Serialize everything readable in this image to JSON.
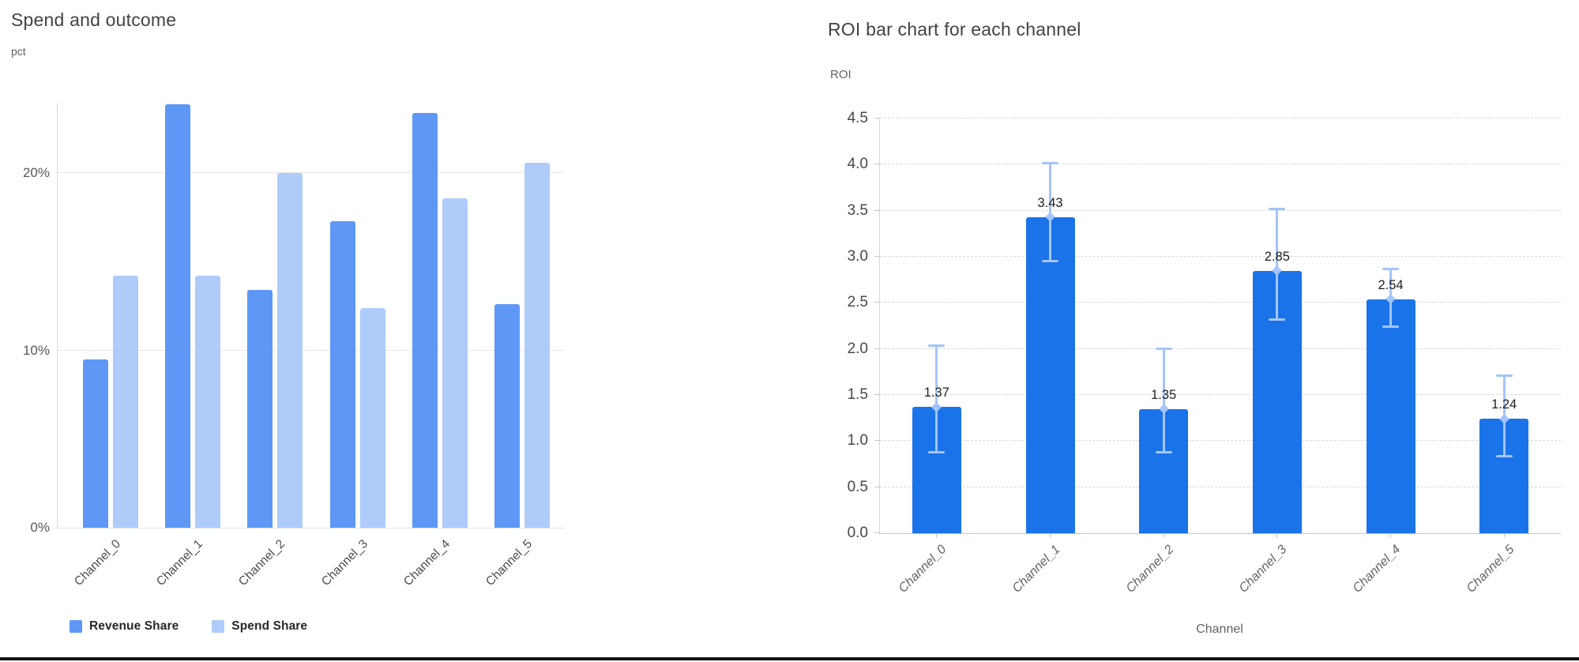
{
  "left": {
    "title": "Spend and outcome",
    "unit_label": "pct"
  },
  "right": {
    "title": "ROI bar chart for each channel",
    "unit_label": "ROI",
    "xlabel": "Channel"
  },
  "chart_data": [
    {
      "type": "bar",
      "title": "Spend and outcome",
      "ylabel": "pct",
      "categories": [
        "Channel_0",
        "Channel_1",
        "Channel_2",
        "Channel_3",
        "Channel_4",
        "Channel_5"
      ],
      "series": [
        {
          "name": "Revenue Share",
          "color": "#5e97f6",
          "values": [
            9.5,
            23.9,
            13.4,
            17.3,
            23.4,
            12.6
          ]
        },
        {
          "name": "Spend Share",
          "color": "#aecbfa",
          "values": [
            14.2,
            14.2,
            20.0,
            12.4,
            18.6,
            20.6
          ]
        }
      ],
      "ytick_labels": [
        "0%",
        "10%",
        "20%"
      ],
      "ytick_values": [
        0,
        10,
        20
      ],
      "ylim": [
        0,
        23.93
      ],
      "grid": "solid",
      "legend_position": "bottom-left"
    },
    {
      "type": "bar",
      "title": "ROI bar chart for each channel",
      "xlabel": "Channel",
      "ylabel": "ROI",
      "categories": [
        "Channel_0",
        "Channel_1",
        "Channel_2",
        "Channel_3",
        "Channel_4",
        "Channel_5"
      ],
      "values": [
        1.37,
        3.43,
        1.35,
        2.85,
        2.54,
        1.24
      ],
      "bar_labels": [
        "1.37",
        "3.43",
        "1.35",
        "2.85",
        "2.54",
        "1.24"
      ],
      "error_low": [
        0.88,
        2.95,
        0.88,
        2.32,
        2.24,
        0.84
      ],
      "error_high": [
        2.04,
        4.02,
        2.0,
        3.52,
        2.87,
        1.71
      ],
      "bar_color": "#1a73e8",
      "error_color": "#a4c4fa",
      "ylim": [
        0,
        4.5
      ],
      "ytick_step": 0.5,
      "grid": "dashed"
    }
  ]
}
